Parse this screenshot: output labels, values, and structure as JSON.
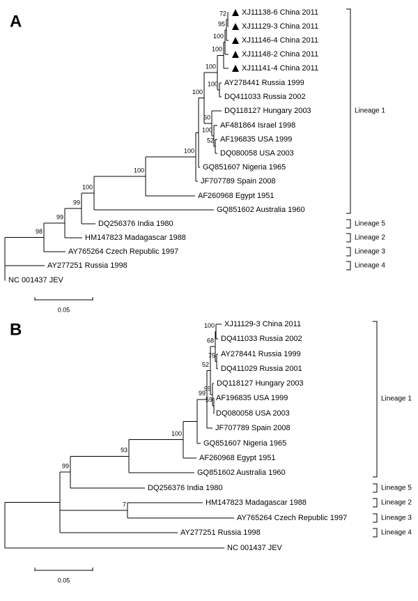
{
  "panels": [
    {
      "letter": "A",
      "scale_label": "0.05",
      "lineage_labels": [
        "Lineage 1",
        "Lineage 5",
        "Lineage 2",
        "Lineage 3",
        "Lineage 4"
      ],
      "taxa": [
        {
          "label": "XJ11138-6 China 2011",
          "marker": "triangle"
        },
        {
          "label": "XJ11129-3 China 2011",
          "marker": "triangle"
        },
        {
          "label": "XJ11146-4 China 2011",
          "marker": "triangle"
        },
        {
          "label": "XJ11148-2 China 2011",
          "marker": "triangle"
        },
        {
          "label": "XJ11141-4 China 2011",
          "marker": "triangle"
        },
        {
          "label": "AY278441 Russia 1999"
        },
        {
          "label": "DQ411033 Russia 2002"
        },
        {
          "label": "DQ118127 Hungary 2003"
        },
        {
          "label": "AF481864 Israel 1998"
        },
        {
          "label": "AF196835 USA 1999"
        },
        {
          "label": "DQ080058 USA 2003"
        },
        {
          "label": "GQ851607 Nigeria 1965"
        },
        {
          "label": "JF707789 Spain 2008"
        },
        {
          "label": "AF260968 Egypt 1951"
        },
        {
          "label": "GQ851602 Australia 1960"
        },
        {
          "label": "DQ256376 India 1980"
        },
        {
          "label": "HM147823 Madagascar 1988"
        },
        {
          "label": "AY765264 Czech Republic 1997"
        },
        {
          "label": "AY277251 Russia 1998"
        },
        {
          "label": "NC 001437 JEV"
        }
      ],
      "support_values": [
        "72",
        "95",
        "100",
        "100",
        "100",
        "100",
        "50",
        "100",
        "100",
        "52",
        "100",
        "100",
        "100",
        "99",
        "99",
        "98"
      ]
    },
    {
      "letter": "B",
      "scale_label": "0.05",
      "lineage_labels": [
        "Lineage 1",
        "Lineage 5",
        "Lineage 2",
        "Lineage 3",
        "Lineage 4"
      ],
      "taxa": [
        {
          "label": "XJ11129-3 China 2011"
        },
        {
          "label": "DQ411033 Russia 2002"
        },
        {
          "label": "AY278441 Russia 1999"
        },
        {
          "label": "DQ411029 Russia 2001"
        },
        {
          "label": "DQ118127 Hungary 2003"
        },
        {
          "label": "AF196835 USA 1999"
        },
        {
          "label": "DQ080058 USA 2003"
        },
        {
          "label": "JF707789 Spain 2008"
        },
        {
          "label": "GQ851607 Nigeria 1965"
        },
        {
          "label": "AF260968 Egypt 1951"
        },
        {
          "label": "GQ851602 Australia 1960"
        },
        {
          "label": "DQ256376 India 1980"
        },
        {
          "label": "HM147823 Madagascar 1988"
        },
        {
          "label": "AY765264 Czech Republic 1997"
        },
        {
          "label": "AY277251 Russia 1998"
        },
        {
          "label": "NC 001437 JEV"
        }
      ],
      "support_values": [
        "100",
        "75",
        "68",
        "52",
        "99",
        "59",
        "99",
        "100",
        "93",
        "99",
        "7"
      ]
    }
  ]
}
